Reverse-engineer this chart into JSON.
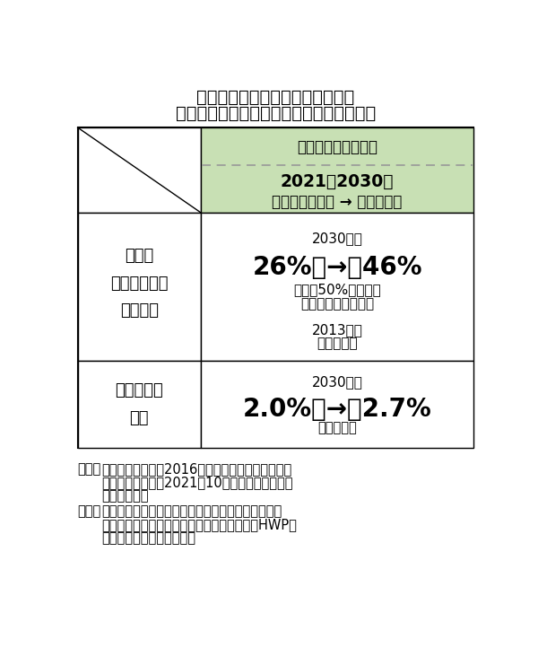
{
  "title_line1": "我が国の温室効果ガス排出削減と",
  "title_line2": "森林吸収量の目標（地球温暖化対策計画）",
  "header_bg": "#c8e0b4",
  "header_text1": "地球温暖化対策計画",
  "header_text2": "2021～2030年",
  "header_text3": "これまでの目標 → 新たな目標",
  "row1_left_text": "日本の\n温室効果ガス\n削減目標",
  "row1_right_line1": "2030年度",
  "row1_right_line2": "26%　→　46%",
  "row1_right_line3": "さらに50%の高みに",
  "row1_right_line4": "向けて挑戦を続ける",
  "row1_right_line5": "2013年度",
  "row1_right_line6": "総排出量比",
  "row2_left_text": "森林吸収量\n目標",
  "row2_right_line1": "2030年度",
  "row2_right_line2": "2.0%　→　2.7%",
  "row2_right_line3": "（同上比）",
  "note1_label": "注１：",
  "note1_col1": "これまでの目標は2016年５月の地球温暖化対策計",
  "note1_col2": "画、新たな目標は2021年10月の地球温暖化対策",
  "note1_col3": "計画に記載。",
  "note2_label": "　２：",
  "note2_col1": "森林吸収量目標には、間伐等の森林経営活動等が行",
  "note2_col2": "われている森林の吸収量と、伐採木材製品（HWP）",
  "note2_col3": "による炭素貯蔵量を計上。",
  "border_color": "#000000",
  "dashed_color": "#999999",
  "text_color": "#000000",
  "bg_white": "#ffffff"
}
